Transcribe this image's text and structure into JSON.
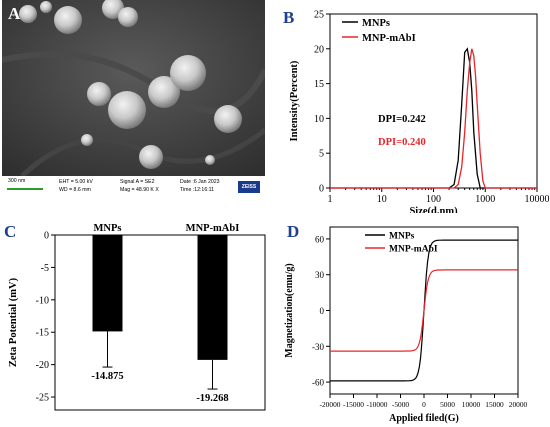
{
  "panels": {
    "a": "A",
    "b": "B",
    "c": "C",
    "d": "D"
  },
  "sem": {
    "scale_label": "300 nm",
    "eht": "EHT = 5.00 kV",
    "wd": "WD = 8.6 mm",
    "signal": "Signal A = SE2",
    "mag": "Mag = 48.90 K X",
    "date": "Date :6 Jan 2023",
    "time": "Time :12:16:11",
    "brand": "ZEISS"
  },
  "chart_data": [
    {
      "id": "B",
      "type": "line",
      "xlabel": "Size(d.nm)",
      "ylabel": "Intensity(Percent)",
      "xscale": "log",
      "xlim": [
        1,
        10000
      ],
      "ylim": [
        0,
        25
      ],
      "xticks": [
        1,
        10,
        100,
        1000,
        10000
      ],
      "xtick_labels": [
        "1",
        "10",
        "100",
        "1000",
        "10000"
      ],
      "yticks": [
        0,
        5,
        10,
        15,
        20,
        25
      ],
      "legend_position": "top-left",
      "series": [
        {
          "name": "MNPs",
          "color": "#000000",
          "x": [
            1,
            200,
            250,
            300,
            350,
            400,
            450,
            500,
            550,
            600,
            700,
            800,
            10000
          ],
          "y": [
            0,
            0,
            0.5,
            4,
            12,
            19.5,
            20,
            18,
            14,
            8,
            2,
            0,
            0
          ]
        },
        {
          "name": "MNP-mAbI",
          "color": "#e8262a",
          "x": [
            1,
            250,
            300,
            350,
            400,
            450,
            500,
            550,
            600,
            650,
            700,
            800,
            900,
            1000,
            10000
          ],
          "y": [
            0,
            0,
            0.5,
            3,
            8,
            14,
            18,
            20,
            19,
            16,
            12,
            5,
            1,
            0,
            0
          ]
        }
      ],
      "annotations": [
        {
          "text": "DPI=0.242",
          "color": "#000000"
        },
        {
          "text": "DPI=0.240",
          "color": "#e8262a"
        }
      ]
    },
    {
      "id": "C",
      "type": "bar",
      "ylabel": "Zeta Potential (mV)",
      "categories": [
        "MNPs",
        "MNP-mAbI"
      ],
      "values": [
        -14.875,
        -19.268
      ],
      "errors": [
        5.5,
        4.5
      ],
      "value_labels": [
        "-14.875",
        "-19.268"
      ],
      "ylim": [
        -27,
        0
      ],
      "yticks": [
        0,
        -5,
        -10,
        -15,
        -20,
        -25
      ],
      "bar_color": "#000000"
    },
    {
      "id": "D",
      "type": "line",
      "xlabel": "Applied filed(G)",
      "ylabel": "Magnetization(emu/g)",
      "xlim": [
        -20000,
        20000
      ],
      "ylim": [
        -70,
        70
      ],
      "xticks": [
        -20000,
        -15000,
        -10000,
        -5000,
        0,
        5000,
        10000,
        15000,
        20000
      ],
      "yticks": [
        -60,
        -30,
        0,
        30,
        60
      ],
      "legend_position": "top-left",
      "series": [
        {
          "name": "MNPs",
          "color": "#000000",
          "ms": 59,
          "k": 900
        },
        {
          "name": "MNP-mAbI",
          "color": "#e8262a",
          "ms": 34,
          "k": 900
        }
      ]
    }
  ]
}
